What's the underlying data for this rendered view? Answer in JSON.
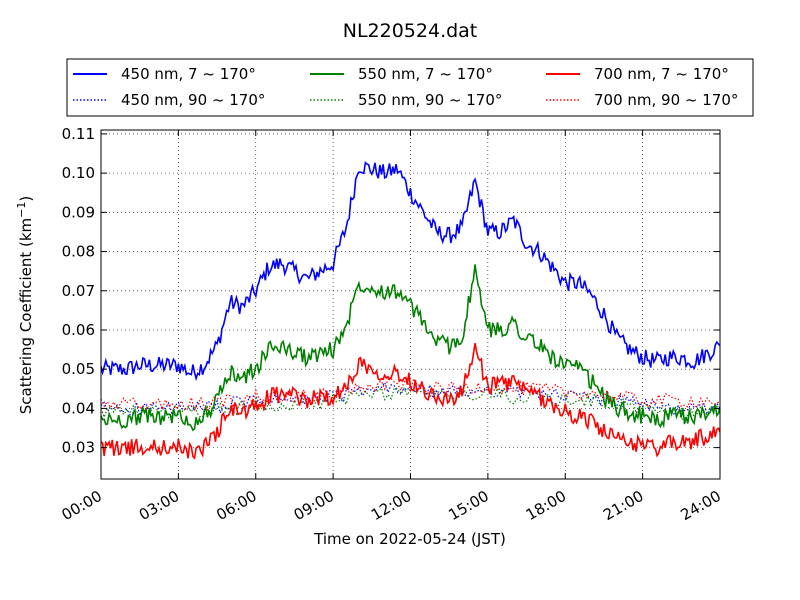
{
  "chart_data": {
    "type": "line",
    "title": "NL220524.dat",
    "xlabel": "Time on 2022-05-24 (JST)",
    "ylabel": "Scattering Coefficient (km",
    "ylabel_sup": "−1",
    "ylabel_close": ")",
    "x_tick_labels": [
      "00:00",
      "03:00",
      "06:00",
      "09:00",
      "12:00",
      "15:00",
      "18:00",
      "21:00",
      "24:00"
    ],
    "x_ticks_hours": [
      0,
      3,
      6,
      9,
      12,
      15,
      18,
      21,
      24
    ],
    "xlim": [
      0,
      24
    ],
    "y_ticks": [
      0.03,
      0.04,
      0.05,
      0.06,
      0.07,
      0.08,
      0.09,
      0.1,
      0.11
    ],
    "y_tick_labels": [
      "0.03",
      "0.04",
      "0.05",
      "0.06",
      "0.07",
      "0.08",
      "0.09",
      "0.10",
      "0.11"
    ],
    "ylim": [
      0.022,
      0.111
    ],
    "grid": true,
    "legend_position": "top (above plot), 3 columns",
    "series": [
      {
        "name": "450 nm, 7 ~ 170°",
        "color": "#0000ff",
        "style": "solid",
        "x": [
          0,
          0.5,
          1,
          1.5,
          2,
          2.5,
          3,
          3.5,
          4,
          4.5,
          5,
          5.5,
          6,
          6.5,
          7,
          7.5,
          8,
          8.5,
          9,
          9.5,
          10,
          10.5,
          11,
          11.5,
          12,
          12.5,
          13,
          13.5,
          14,
          14.5,
          15,
          15.5,
          16,
          16.5,
          17,
          17.5,
          18,
          18.5,
          19,
          19.5,
          20,
          20.5,
          21,
          21.5,
          22,
          22.5,
          23,
          23.5,
          24
        ],
        "values": [
          0.05,
          0.05,
          0.05,
          0.051,
          0.051,
          0.051,
          0.051,
          0.049,
          0.051,
          0.056,
          0.067,
          0.066,
          0.07,
          0.076,
          0.077,
          0.075,
          0.073,
          0.075,
          0.077,
          0.086,
          0.102,
          0.101,
          0.1,
          0.101,
          0.095,
          0.09,
          0.085,
          0.084,
          0.086,
          0.098,
          0.085,
          0.085,
          0.088,
          0.082,
          0.08,
          0.076,
          0.072,
          0.072,
          0.069,
          0.064,
          0.058,
          0.055,
          0.053,
          0.052,
          0.053,
          0.053,
          0.052,
          0.054,
          0.056
        ]
      },
      {
        "name": "450 nm, 90 ~ 170°",
        "color": "#0000ff",
        "style": "dotted",
        "x": [
          0,
          1,
          2,
          3,
          4,
          5,
          6,
          7,
          8,
          9,
          10,
          11,
          12,
          13,
          14,
          15,
          16,
          17,
          18,
          19,
          20,
          21,
          22,
          23,
          24
        ],
        "values": [
          0.04,
          0.04,
          0.04,
          0.04,
          0.04,
          0.041,
          0.042,
          0.042,
          0.042,
          0.043,
          0.044,
          0.045,
          0.045,
          0.044,
          0.044,
          0.045,
          0.044,
          0.044,
          0.043,
          0.043,
          0.042,
          0.041,
          0.04,
          0.04,
          0.04
        ]
      },
      {
        "name": "550 nm, 7 ~ 170°",
        "color": "#008000",
        "style": "solid",
        "x": [
          0,
          0.5,
          1,
          1.5,
          2,
          2.5,
          3,
          3.5,
          4,
          4.5,
          5,
          5.5,
          6,
          6.5,
          7,
          7.5,
          8,
          8.5,
          9,
          9.5,
          10,
          10.5,
          11,
          11.5,
          12,
          12.5,
          13,
          13.5,
          14,
          14.5,
          15,
          15.5,
          16,
          16.5,
          17,
          17.5,
          18,
          18.5,
          19,
          19.5,
          20,
          20.5,
          21,
          21.5,
          22,
          22.5,
          23,
          23.5,
          24
        ],
        "values": [
          0.037,
          0.037,
          0.037,
          0.038,
          0.038,
          0.038,
          0.038,
          0.036,
          0.038,
          0.042,
          0.049,
          0.048,
          0.05,
          0.055,
          0.056,
          0.054,
          0.053,
          0.054,
          0.055,
          0.061,
          0.072,
          0.071,
          0.07,
          0.07,
          0.066,
          0.062,
          0.057,
          0.056,
          0.058,
          0.075,
          0.06,
          0.06,
          0.062,
          0.058,
          0.056,
          0.053,
          0.051,
          0.05,
          0.047,
          0.043,
          0.04,
          0.039,
          0.038,
          0.037,
          0.038,
          0.038,
          0.038,
          0.039,
          0.04
        ]
      },
      {
        "name": "550 nm, 90 ~ 170°",
        "color": "#008000",
        "style": "dotted",
        "x": [
          0,
          1,
          2,
          3,
          4,
          5,
          6,
          7,
          8,
          9,
          10,
          11,
          12,
          13,
          14,
          15,
          16,
          17,
          18,
          19,
          20,
          21,
          22,
          23,
          24
        ],
        "values": [
          0.039,
          0.039,
          0.039,
          0.039,
          0.039,
          0.04,
          0.041,
          0.041,
          0.041,
          0.042,
          0.043,
          0.044,
          0.044,
          0.043,
          0.043,
          0.044,
          0.043,
          0.043,
          0.042,
          0.042,
          0.041,
          0.04,
          0.039,
          0.039,
          0.039
        ]
      },
      {
        "name": "700 nm, 7 ~ 170°",
        "color": "#ff0000",
        "style": "solid",
        "x": [
          0,
          0.5,
          1,
          1.5,
          2,
          2.5,
          3,
          3.5,
          4,
          4.5,
          5,
          5.5,
          6,
          6.5,
          7,
          7.5,
          8,
          8.5,
          9,
          9.5,
          10,
          10.5,
          11,
          11.5,
          12,
          12.5,
          13,
          13.5,
          14,
          14.5,
          15,
          15.5,
          16,
          16.5,
          17,
          17.5,
          18,
          18.5,
          19,
          19.5,
          20,
          20.5,
          21,
          21.5,
          22,
          22.5,
          23,
          23.5,
          24
        ],
        "values": [
          0.03,
          0.03,
          0.03,
          0.03,
          0.03,
          0.03,
          0.03,
          0.029,
          0.03,
          0.034,
          0.04,
          0.039,
          0.04,
          0.043,
          0.044,
          0.043,
          0.042,
          0.043,
          0.043,
          0.045,
          0.052,
          0.05,
          0.049,
          0.049,
          0.047,
          0.045,
          0.043,
          0.042,
          0.044,
          0.055,
          0.046,
          0.046,
          0.047,
          0.044,
          0.043,
          0.041,
          0.039,
          0.038,
          0.037,
          0.034,
          0.032,
          0.031,
          0.031,
          0.03,
          0.031,
          0.031,
          0.032,
          0.033,
          0.034
        ]
      },
      {
        "name": "700 nm, 90 ~ 170°",
        "color": "#ff0000",
        "style": "dotted",
        "x": [
          0,
          1,
          2,
          3,
          4,
          5,
          6,
          7,
          8,
          9,
          10,
          11,
          12,
          13,
          14,
          15,
          16,
          17,
          18,
          19,
          20,
          21,
          22,
          23,
          24
        ],
        "values": [
          0.041,
          0.041,
          0.041,
          0.041,
          0.041,
          0.042,
          0.043,
          0.043,
          0.043,
          0.044,
          0.045,
          0.046,
          0.046,
          0.045,
          0.045,
          0.046,
          0.045,
          0.045,
          0.044,
          0.044,
          0.043,
          0.042,
          0.042,
          0.042,
          0.042
        ]
      }
    ]
  }
}
